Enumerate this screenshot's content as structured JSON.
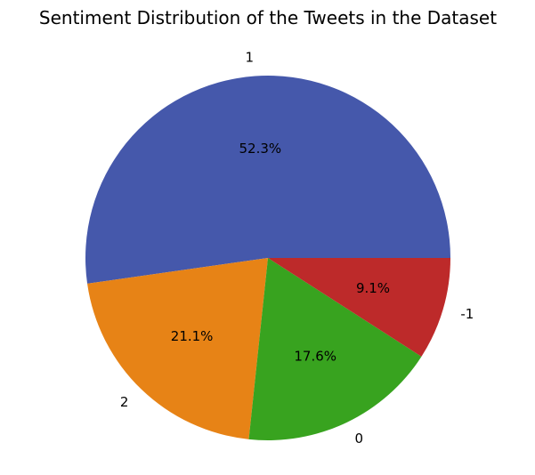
{
  "chart_data": {
    "type": "pie",
    "title": "Sentiment Distribution of the Tweets in the Dataset",
    "slices": [
      {
        "label": "1",
        "value": 52.3,
        "pct_label": "52.3%",
        "color": "#4558ab"
      },
      {
        "label": "2",
        "value": 21.1,
        "pct_label": "21.1%",
        "color": "#e78316"
      },
      {
        "label": "0",
        "value": 17.6,
        "pct_label": "17.6%",
        "color": "#38a31f"
      },
      {
        "label": "-1",
        "value": 9.1,
        "pct_label": "9.1%",
        "color": "#bd2a2a"
      }
    ],
    "start_angle_deg": 0,
    "direction": "counterclockwise",
    "legend": "none"
  }
}
